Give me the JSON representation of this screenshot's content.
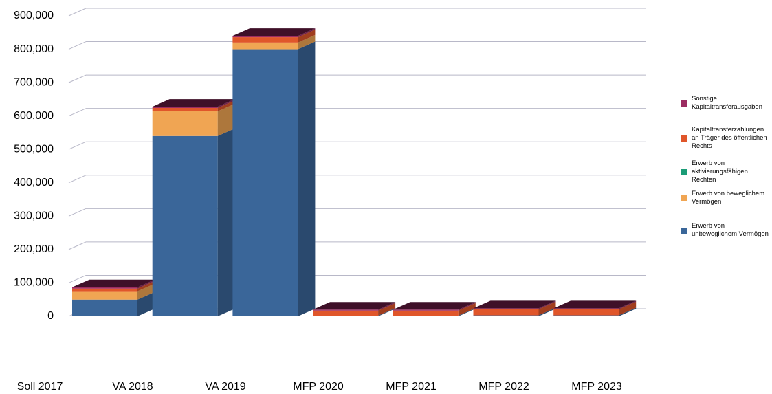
{
  "chart_data": {
    "type": "bar3d_stacked",
    "categories": [
      "Soll 2017",
      "VA 2018",
      "VA 2019",
      "MFP 2020",
      "MFP 2021",
      "MFP 2022",
      "MFP 2023"
    ],
    "series": [
      {
        "name": "Erwerb von unbeweglichem Vermögen",
        "color": "#3a6699",
        "values": [
          50000,
          540000,
          800000,
          2000,
          2000,
          3000,
          3000
        ]
      },
      {
        "name": "Erwerb von beweglichem Vermögen",
        "color": "#f0a553",
        "values": [
          25000,
          74000,
          20000,
          0,
          0,
          0,
          0
        ]
      },
      {
        "name": "Erwerb von aktivierungsfähigen Rechten",
        "color": "#1b9c77",
        "values": [
          0,
          0,
          0,
          0,
          0,
          0,
          0
        ]
      },
      {
        "name": "Kapitaltransferzahlungen an Träger des öffentlichen Rechts",
        "color": "#e0562a",
        "values": [
          8000,
          10000,
          16000,
          15000,
          15000,
          18000,
          18000
        ]
      },
      {
        "name": "Sonstige Kapitaltransferausgaben",
        "color": "#9b2c61",
        "values": [
          4000,
          4000,
          4000,
          3000,
          3000,
          3000,
          3000
        ]
      }
    ],
    "ylim": [
      0,
      900000
    ],
    "yticks": [
      0,
      {
        "value": 100000,
        "label": "100,000"
      },
      {
        "value": 200000,
        "label": "200,000"
      },
      {
        "value": 300000,
        "label": "300,000"
      },
      {
        "value": 400000,
        "label": "400,000"
      },
      {
        "value": 500000,
        "label": "500,000"
      },
      {
        "value": 600000,
        "label": "600,000"
      },
      {
        "value": 700000,
        "label": "700,000"
      },
      {
        "value": 800000,
        "label": "800,000"
      },
      {
        "value": 900000,
        "label": "900,000"
      }
    ],
    "grid": true
  }
}
